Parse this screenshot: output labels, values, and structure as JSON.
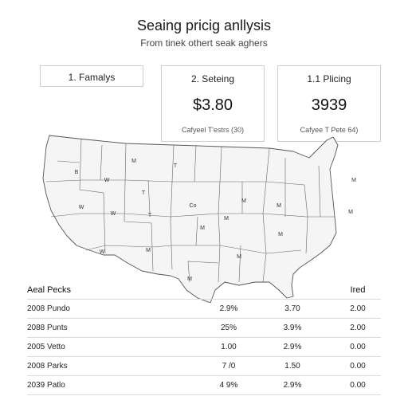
{
  "header": {
    "title": "Seaing pricig anllysis",
    "subtitle": "From tinek othert seak aghers"
  },
  "cards": [
    {
      "label": "1. Famalys",
      "value": "",
      "note": ""
    },
    {
      "label": "2. Seteing",
      "value": "$3.80",
      "note": "Cafyeel T'estrs (30)"
    },
    {
      "label": "1.1 Plicing",
      "value": "3939",
      "note": "Cafyee T Pete 64)"
    }
  ],
  "map": {
    "state_labels": [
      "M",
      "W",
      "T",
      "W",
      "W",
      "W",
      "Co",
      "M",
      "M",
      "M",
      "T",
      "B",
      "T",
      "M",
      "M",
      "M",
      "M",
      "M",
      "M",
      "M"
    ]
  },
  "table": {
    "headers": [
      "Aeal Pecks",
      "",
      "",
      "Ired"
    ],
    "rows": [
      [
        "2008 Pundo",
        "2.9%",
        "3.70",
        "2.00"
      ],
      [
        "2088 Punts",
        "25%",
        "3.9%",
        "2.00"
      ],
      [
        "2005 Vetto",
        "1.00",
        "2.9%",
        "0.00"
      ],
      [
        "2008 Parks",
        "7 /0",
        "1.50",
        "0.00"
      ],
      [
        "2039 Patlo",
        "4 9%",
        "2.9%",
        "0.00"
      ]
    ]
  },
  "colors": {
    "map_stroke": "#555555",
    "map_fill": "#f5f5f5",
    "divider": "#dcdcdc"
  }
}
